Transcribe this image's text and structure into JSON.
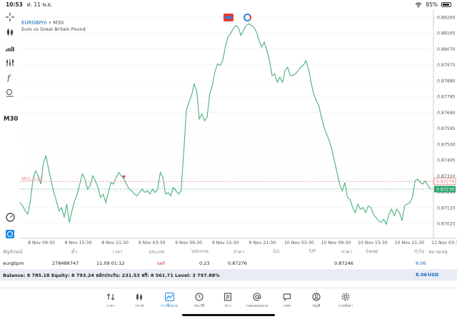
{
  "status_bar": {
    "time": "10:53",
    "date": "ศ. 11 พ.ย.",
    "battery": "85%",
    "battery_level": 0.85
  },
  "chart": {
    "symbol": "EURGBPm",
    "separator": "•",
    "timeframe_label": "M30",
    "description": "Euro vs Great Britain Pound",
    "timeframe": "M30",
    "sell_line_label": "SELL 0.23",
    "sell_price_tag": "0.87276",
    "current_price_tag": "0.87230",
    "price_axis": [
      "0.88260",
      "0.88165",
      "0.88070",
      "0.87975",
      "0.87880",
      "0.87785",
      "0.87690",
      "0.87595",
      "0.87500",
      "0.87405",
      "0.87310",
      "0.87215",
      "0.87120",
      "0.87025"
    ],
    "time_axis": [
      "8 Nov 09:30",
      "8 Nov 15:30",
      "8 Nov 21:30",
      "9 Nov 03:30",
      "9 Nov 09:30",
      "9 Nov 15:30",
      "9 Nov 21:30",
      "10 Nov 03:30",
      "10 Nov 09:30",
      "10 Nov 15:30",
      "10 Nov 21:30",
      "11 Nov 03:30"
    ],
    "colors": {
      "line": "#4caf7d",
      "sell": "#e57373",
      "current": "#26a269",
      "grid": "#eeeeee"
    }
  },
  "chart_data": {
    "type": "line",
    "ylim": [
      0.87,
      0.8828
    ],
    "y": [
      0.8715,
      0.8713,
      0.871,
      0.8708,
      0.8716,
      0.8729,
      0.8734,
      0.8731,
      0.8726,
      0.8739,
      0.8743,
      0.8735,
      0.8728,
      0.8721,
      0.8716,
      0.871,
      0.8712,
      0.8706,
      0.8714,
      0.8703,
      0.871,
      0.8716,
      0.872,
      0.8726,
      0.8732,
      0.8729,
      0.8723,
      0.8725,
      0.8731,
      0.8728,
      0.8724,
      0.8718,
      0.872,
      0.8715,
      0.8721,
      0.8727,
      0.8726,
      0.873,
      0.8733,
      0.8731,
      0.8729,
      0.8726,
      0.8723,
      0.8722,
      0.872,
      0.8719,
      0.8721,
      0.8723,
      0.8721,
      0.8722,
      0.872,
      0.8723,
      0.8721,
      0.8723,
      0.8733,
      0.873,
      0.872,
      0.8721,
      0.8719,
      0.8724,
      0.8722,
      0.872,
      0.8722,
      0.8745,
      0.877,
      0.8775,
      0.8779,
      0.8786,
      0.8782,
      0.8765,
      0.8768,
      0.8764,
      0.8766,
      0.878,
      0.8785,
      0.8793,
      0.8798,
      0.8797,
      0.88,
      0.8808,
      0.8814,
      0.8816,
      0.8819,
      0.8821,
      0.882,
      0.8815,
      0.8818,
      0.8821,
      0.8822,
      0.8821,
      0.882,
      0.8817,
      0.8812,
      0.8808,
      0.8811,
      0.8806,
      0.88,
      0.8791,
      0.8792,
      0.8787,
      0.879,
      0.8787,
      0.8794,
      0.8796,
      0.8791,
      0.8791,
      0.8792,
      0.8794,
      0.8796,
      0.8797,
      0.88,
      0.8795,
      0.8787,
      0.878,
      0.8776,
      0.8773,
      0.8766,
      0.876,
      0.8756,
      0.8752,
      0.8747,
      0.874,
      0.8733,
      0.8726,
      0.8722,
      0.8727,
      0.8718,
      0.8717,
      0.8712,
      0.8709,
      0.8714,
      0.8711,
      0.8712,
      0.8709,
      0.8713,
      0.8712,
      0.8708,
      0.8706,
      0.8704,
      0.8703,
      0.8705,
      0.8702,
      0.8708,
      0.8711,
      0.8707,
      0.8711,
      0.8709,
      0.8704,
      0.8713,
      0.8714,
      0.8715,
      0.8718,
      0.8728,
      0.8729,
      0.8727,
      0.8726,
      0.8728,
      0.8725,
      0.8723
    ],
    "sell_level": 0.87276,
    "current_level": 0.8723,
    "sell_marker_index": 40
  },
  "trade_table": {
    "headers": [
      "สัญลักษณ์",
      "ตั๋ว",
      "เวลา",
      "ประเภท",
      "Volume",
      "ราคา",
      "S/L",
      "T/P",
      "ราคา",
      "Swap",
      "กำไร",
      "หมายเหตุ"
    ],
    "row": {
      "symbol": "eurgbpm",
      "ticket": "278488747",
      "time": "11.09 01:12",
      "type": "sell",
      "volume": "0.23",
      "open_price": "0.87276",
      "current_price": "0.87246",
      "profit": "8.06"
    }
  },
  "balance_bar": {
    "text": "Balance: 8 785.18 Equity: 8 793.24 หลักประกัน: 231.53 ฟรี: 8 561.71 Level: 3 797.88%",
    "total": "8.06",
    "currency": "USD"
  },
  "nav": [
    {
      "label": "ราคา",
      "icon": "quotes-icon"
    },
    {
      "label": "กราฟ",
      "icon": "candles-icon"
    },
    {
      "label": "การซื้อขาย",
      "icon": "trade-icon",
      "active": true
    },
    {
      "label": "ประวัติ",
      "icon": "history-icon"
    },
    {
      "label": "ข่าว",
      "icon": "news-icon"
    },
    {
      "label": "กล่องจดหมาย",
      "icon": "mailbox-icon"
    },
    {
      "label": "แชท",
      "icon": "chat-icon"
    },
    {
      "label": "บัญชี",
      "icon": "account-icon"
    },
    {
      "label": "การตั้งค่า",
      "icon": "settings-icon"
    }
  ]
}
